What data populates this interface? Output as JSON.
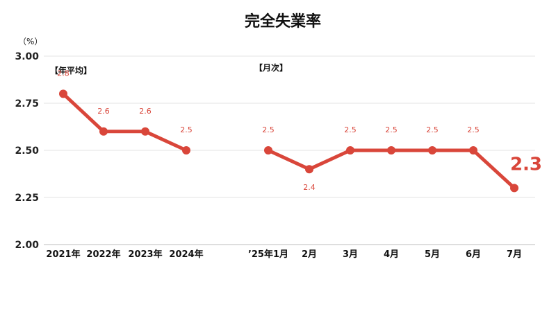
{
  "chart_data": {
    "type": "line",
    "title": "完全失業率",
    "yunit": "（%）",
    "ylim": [
      2.0,
      3.0
    ],
    "yticks": [
      "3.00",
      "2.75",
      "2.50",
      "2.25",
      "2.00"
    ],
    "ytick_values": [
      3.0,
      2.75,
      2.5,
      2.25,
      2.0
    ],
    "grid": true,
    "color": "#d9463a",
    "segments": [
      {
        "label": "【年平均】",
        "categories": [
          "2021年",
          "2022年",
          "2023年",
          "2024年"
        ],
        "values": [
          2.8,
          2.6,
          2.6,
          2.5
        ],
        "value_labels": [
          "2.8",
          "2.6",
          "2.6",
          "2.5"
        ]
      },
      {
        "label": "【月次】",
        "categories": [
          "’25年1月",
          "2月",
          "3月",
          "4月",
          "5月",
          "6月",
          "7月"
        ],
        "values": [
          2.5,
          2.4,
          2.5,
          2.5,
          2.5,
          2.5,
          2.3
        ],
        "value_labels": [
          "2.5",
          "2.4",
          "2.5",
          "2.5",
          "2.5",
          "2.5",
          "2.3"
        ]
      }
    ]
  }
}
